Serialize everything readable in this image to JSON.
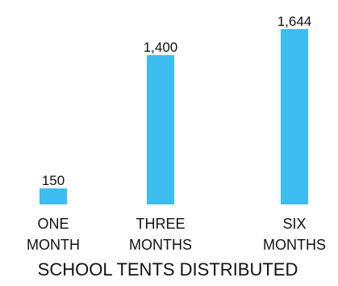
{
  "chart_data": {
    "type": "bar",
    "title": "SCHOOL TENTS DISTRIBUTED",
    "categories": [
      [
        "ONE",
        "MONTH"
      ],
      [
        "THREE",
        "MONTHS"
      ],
      [
        "SIX",
        "MONTHS"
      ]
    ],
    "values": [
      150,
      1400,
      1644
    ],
    "value_labels": [
      "150",
      "1,400",
      "1,644"
    ],
    "ylim": [
      0,
      1644
    ],
    "grid": false,
    "legend": "none",
    "colors": {
      "bar": "#3BBDEF",
      "text": "#111111",
      "background": "#FFFFFF"
    }
  }
}
